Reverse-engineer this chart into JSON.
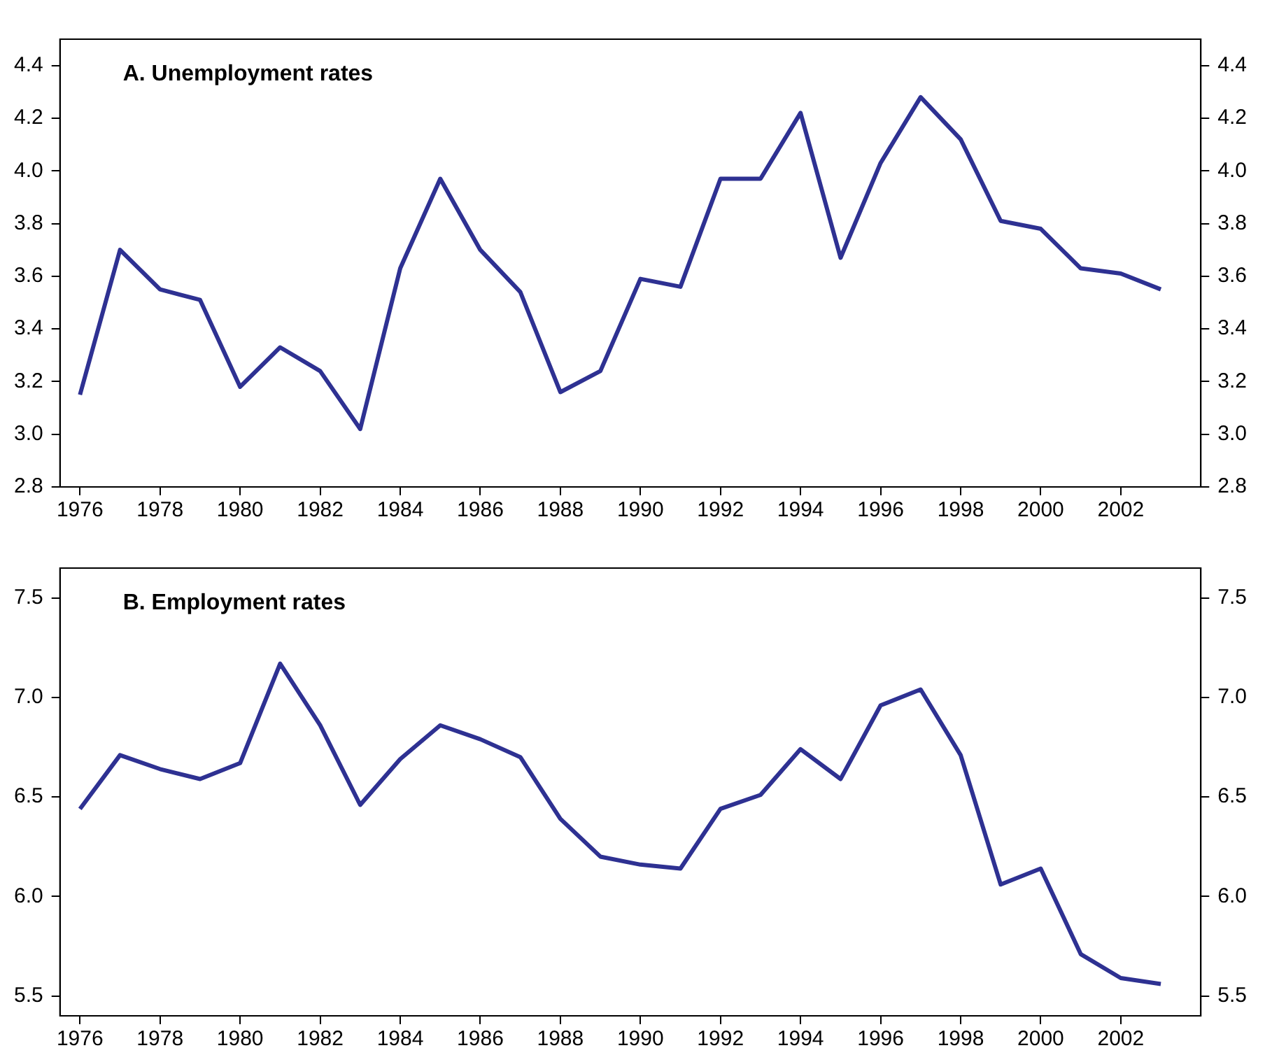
{
  "chart_data": [
    {
      "type": "line",
      "title": "A. Unemployment rates",
      "x": [
        1976,
        1977,
        1978,
        1979,
        1980,
        1981,
        1982,
        1983,
        1984,
        1985,
        1986,
        1987,
        1988,
        1989,
        1990,
        1991,
        1992,
        1993,
        1994,
        1995,
        1996,
        1997,
        1998,
        1999,
        2000,
        2001,
        2002,
        2003
      ],
      "series": [
        {
          "color": "#2e3192",
          "values": [
            3.15,
            3.7,
            3.55,
            3.51,
            3.18,
            3.33,
            3.24,
            3.02,
            3.63,
            3.97,
            3.7,
            3.54,
            3.16,
            3.24,
            3.59,
            3.56,
            3.97,
            3.97,
            4.22,
            3.67,
            4.03,
            4.28,
            4.12,
            3.81,
            3.78,
            3.63,
            3.61,
            3.55
          ]
        }
      ],
      "xlim": [
        1975.5,
        2004
      ],
      "xticks": [
        1976,
        1978,
        1980,
        1982,
        1984,
        1986,
        1988,
        1990,
        1992,
        1994,
        1996,
        1998,
        2000,
        2002
      ],
      "ylim": [
        2.8,
        4.5
      ],
      "yticks": [
        {
          "value": 2.8,
          "label": "2.8"
        },
        {
          "value": 3.0,
          "label": "3.0"
        },
        {
          "value": 3.2,
          "label": "3.2"
        },
        {
          "value": 3.4,
          "label": "3.4"
        },
        {
          "value": 3.6,
          "label": "3.6"
        },
        {
          "value": 3.8,
          "label": "3.8"
        },
        {
          "value": 4.0,
          "label": "4.0"
        },
        {
          "value": 4.2,
          "label": "4.2"
        },
        {
          "value": 4.4,
          "label": "4.4"
        }
      ],
      "y2lim": [
        2.8,
        4.5
      ],
      "y2ticks": [
        {
          "value": 2.8,
          "label": "2.8"
        },
        {
          "value": 3.0,
          "label": "3.0"
        },
        {
          "value": 3.2,
          "label": "3.2"
        },
        {
          "value": 3.4,
          "label": "3.4"
        },
        {
          "value": 3.6,
          "label": "3.6"
        },
        {
          "value": 3.8,
          "label": "3.8"
        },
        {
          "value": 4.0,
          "label": "4.0"
        },
        {
          "value": 4.2,
          "label": "4.2"
        },
        {
          "value": 4.4,
          "label": "4.4"
        }
      ],
      "grid": false,
      "legend": false,
      "marker": "none",
      "line_style": "solid"
    },
    {
      "type": "line",
      "title": "B. Employment rates",
      "x": [
        1976,
        1977,
        1978,
        1979,
        1980,
        1981,
        1982,
        1983,
        1984,
        1985,
        1986,
        1987,
        1988,
        1989,
        1990,
        1991,
        1992,
        1993,
        1994,
        1995,
        1996,
        1997,
        1998,
        1999,
        2000,
        2001,
        2002,
        2003
      ],
      "series": [
        {
          "color": "#2e3192",
          "values": [
            6.44,
            6.71,
            6.64,
            6.59,
            6.67,
            7.17,
            6.86,
            6.46,
            6.69,
            6.86,
            6.79,
            6.7,
            6.39,
            6.2,
            6.16,
            6.14,
            6.44,
            6.51,
            6.74,
            6.59,
            6.96,
            7.04,
            6.71,
            6.06,
            6.14,
            5.71,
            5.59,
            5.56
          ]
        }
      ],
      "xlim": [
        1975.5,
        2004
      ],
      "xticks": [
        1976,
        1978,
        1980,
        1982,
        1984,
        1986,
        1988,
        1990,
        1992,
        1994,
        1996,
        1998,
        2000,
        2002
      ],
      "ylim": [
        5.4,
        7.65
      ],
      "yticks": [
        {
          "value": 5.5,
          "label": "5.5"
        },
        {
          "value": 6.0,
          "label": "6.0"
        },
        {
          "value": 6.5,
          "label": "6.5"
        },
        {
          "value": 7.0,
          "label": "7.0"
        },
        {
          "value": 7.5,
          "label": "7.5"
        }
      ],
      "y2lim": [
        5.4,
        7.65
      ],
      "y2ticks": [
        {
          "value": 5.5,
          "label": "5.5"
        },
        {
          "value": 6.0,
          "label": "6.0"
        },
        {
          "value": 6.5,
          "label": "6.5"
        },
        {
          "value": 7.0,
          "label": "7.0"
        },
        {
          "value": 7.5,
          "label": "7.5"
        }
      ],
      "grid": false,
      "legend": false,
      "marker": "none",
      "line_style": "solid"
    }
  ]
}
